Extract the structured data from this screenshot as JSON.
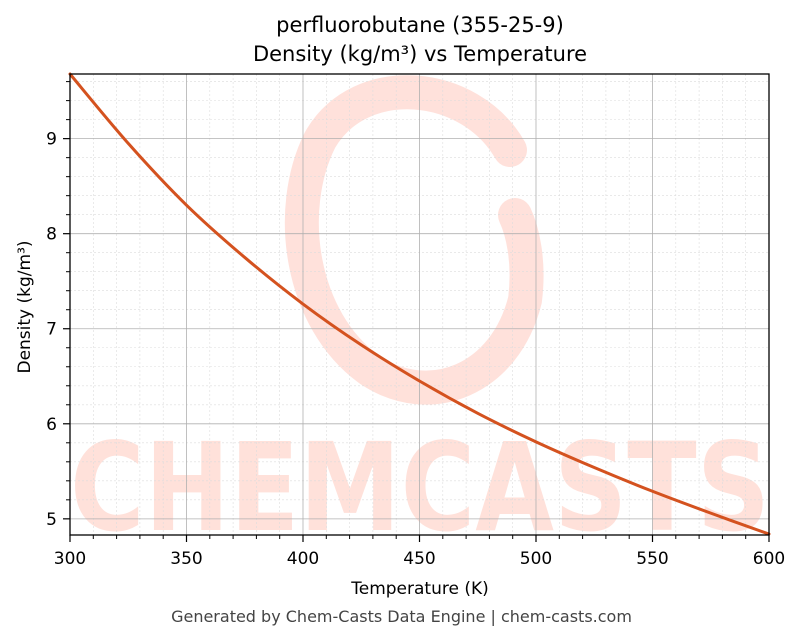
{
  "chart_data": {
    "type": "line",
    "title": "perfluorobutane (355-25-9)",
    "subtitle": "Density (kg/m³) vs Temperature",
    "xlabel": "Temperature (K)",
    "ylabel": "Density (kg/m³)",
    "xlim": [
      300,
      600
    ],
    "ylim": [
      4.83,
      9.68
    ],
    "xticks": [
      300,
      350,
      400,
      450,
      500,
      550,
      600
    ],
    "yticks": [
      5,
      6,
      7,
      8,
      9
    ],
    "grid": true,
    "series": [
      {
        "color": "#d4521f",
        "x": [
          300,
          325,
          350,
          375,
          400,
          425,
          450,
          475,
          500,
          525,
          550,
          575,
          600
        ],
        "y": [
          9.68,
          8.95,
          8.3,
          7.75,
          7.26,
          6.83,
          6.45,
          6.11,
          5.81,
          5.54,
          5.29,
          5.06,
          4.84
        ]
      }
    ],
    "watermark": "CHEMCASTS"
  },
  "footer": "Generated by Chem-Casts Data Engine | chem-casts.com"
}
